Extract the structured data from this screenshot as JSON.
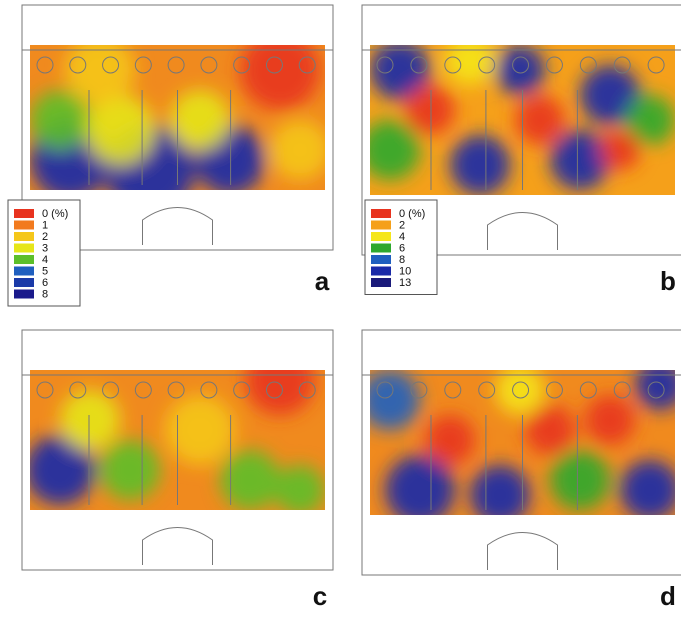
{
  "panels": [
    {
      "label": "a",
      "legend": [
        {
          "label": "0 (%)",
          "color": "#e8331f"
        },
        {
          "label": "1",
          "color": "#f27a1e"
        },
        {
          "label": "2",
          "color": "#f5c71a"
        },
        {
          "label": "3",
          "color": "#e6e619"
        },
        {
          "label": "4",
          "color": "#5cbf2a"
        },
        {
          "label": "5",
          "color": "#1f5fbf"
        },
        {
          "label": "6",
          "color": "#1a3aa8"
        },
        {
          "label": "8",
          "color": "#1a1a8c"
        }
      ]
    },
    {
      "label": "b",
      "legend": [
        {
          "label": "0 (%)",
          "color": "#e8331f"
        },
        {
          "label": "2",
          "color": "#f5a01a"
        },
        {
          "label": "4",
          "color": "#f5e61a"
        },
        {
          "label": "6",
          "color": "#2ea82e"
        },
        {
          "label": "8",
          "color": "#1f5fbf"
        },
        {
          "label": "10",
          "color": "#1a2aa8"
        },
        {
          "label": "13",
          "color": "#1a1a7a"
        }
      ]
    },
    {
      "label": "c"
    },
    {
      "label": "d"
    }
  ]
}
